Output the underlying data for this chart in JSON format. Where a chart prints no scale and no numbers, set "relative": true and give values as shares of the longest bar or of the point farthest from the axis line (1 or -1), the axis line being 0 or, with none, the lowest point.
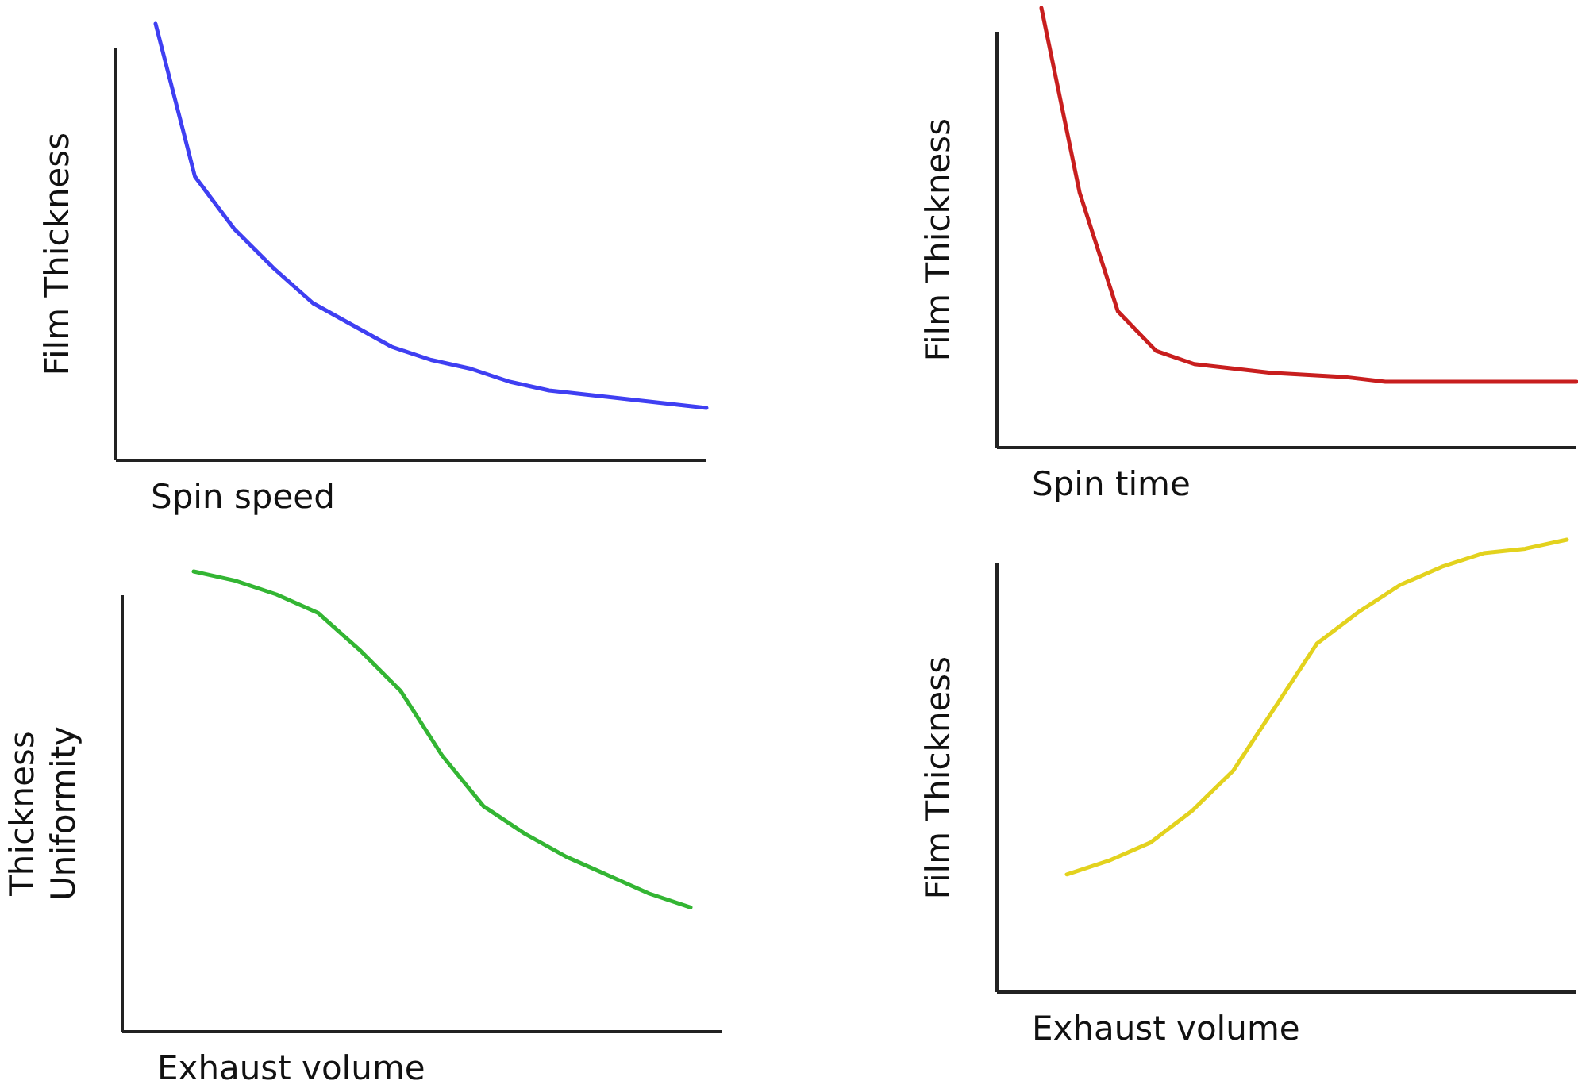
{
  "chart_data": [
    {
      "type": "line",
      "relative": true,
      "xlabel": "Spin speed",
      "ylabel": "Film Thickness",
      "categories": [
        null,
        null,
        null,
        null,
        null,
        null,
        null,
        null,
        null,
        null,
        null,
        null,
        null,
        null,
        null
      ],
      "series": [
        {
          "color": "#3f3ff2",
          "values": [
            1.0,
            0.65,
            0.53,
            0.44,
            0.36,
            0.31,
            0.26,
            0.23,
            0.21,
            0.18,
            0.16,
            0.15,
            0.14,
            0.13,
            0.12
          ]
        }
      ]
    },
    {
      "type": "line",
      "relative": true,
      "xlabel": "Spin time",
      "ylabel": "Film Thickness",
      "categories": [
        null,
        null,
        null,
        null,
        null,
        null,
        null,
        null,
        null,
        null,
        null,
        null,
        null,
        null,
        null
      ],
      "series": [
        {
          "color": "#c81e1e",
          "values": [
            1.0,
            0.58,
            0.31,
            0.22,
            0.19,
            0.18,
            0.17,
            0.165,
            0.16,
            0.15,
            0.15,
            0.15,
            0.15,
            0.15,
            0.15
          ]
        }
      ]
    },
    {
      "type": "line",
      "relative": true,
      "xlabel": "Exhaust volume",
      "ylabel": "Thickness\nUniformity",
      "categories": [
        null,
        null,
        null,
        null,
        null,
        null,
        null,
        null,
        null,
        null,
        null,
        null,
        null
      ],
      "series": [
        {
          "color": "#33b533",
          "values": [
            1.0,
            0.98,
            0.95,
            0.91,
            0.83,
            0.74,
            0.6,
            0.49,
            0.43,
            0.38,
            0.34,
            0.3,
            0.27
          ]
        }
      ]
    },
    {
      "type": "line",
      "relative": true,
      "xlabel": "Exhaust volume",
      "ylabel": "Film Thickness",
      "categories": [
        null,
        null,
        null,
        null,
        null,
        null,
        null,
        null,
        null,
        null,
        null,
        null,
        null
      ],
      "series": [
        {
          "color": "#e3d21e",
          "values": [
            0.26,
            0.29,
            0.33,
            0.4,
            0.49,
            0.63,
            0.77,
            0.84,
            0.9,
            0.94,
            0.97,
            0.98,
            1.0
          ]
        }
      ]
    }
  ]
}
